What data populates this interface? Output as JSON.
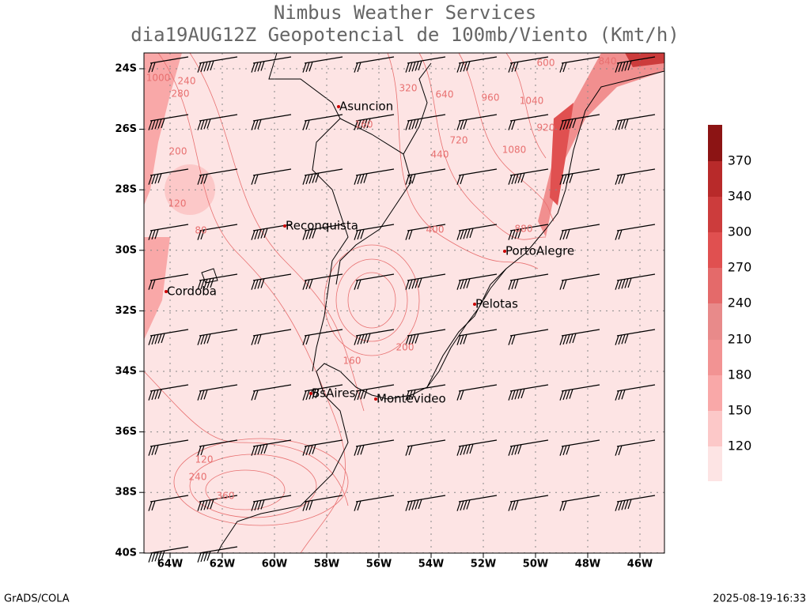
{
  "header": {
    "title": "Nimbus Weather Services",
    "subtitle": "dia19AUG12Z Geopotencial de 100mb/Viento (Kmt/h)"
  },
  "lat_labels": [
    "24S",
    "26S",
    "28S",
    "30S",
    "32S",
    "34S",
    "36S",
    "38S",
    "40S"
  ],
  "lon_labels": [
    "64W",
    "62W",
    "60W",
    "58W",
    "56W",
    "54W",
    "52W",
    "50W",
    "48W",
    "46W"
  ],
  "cities": [
    "Asuncion",
    "Reconquista",
    "PortoAlegre",
    "Cordoba",
    "Pelotas",
    "BsAires",
    "Montevideo"
  ],
  "colorbar_levels": [
    120,
    150,
    180,
    210,
    240,
    270,
    300,
    340,
    370
  ],
  "contour_labels": [
    1000,
    240,
    280,
    200,
    160,
    120,
    80,
    400,
    320,
    640,
    960,
    1040,
    1080,
    720,
    880,
    600,
    840,
    920,
    440,
    360,
    240,
    200,
    160,
    120
  ],
  "footer": {
    "left": "GrADS/COLA",
    "right": "2025-08-19-16:33"
  }
}
